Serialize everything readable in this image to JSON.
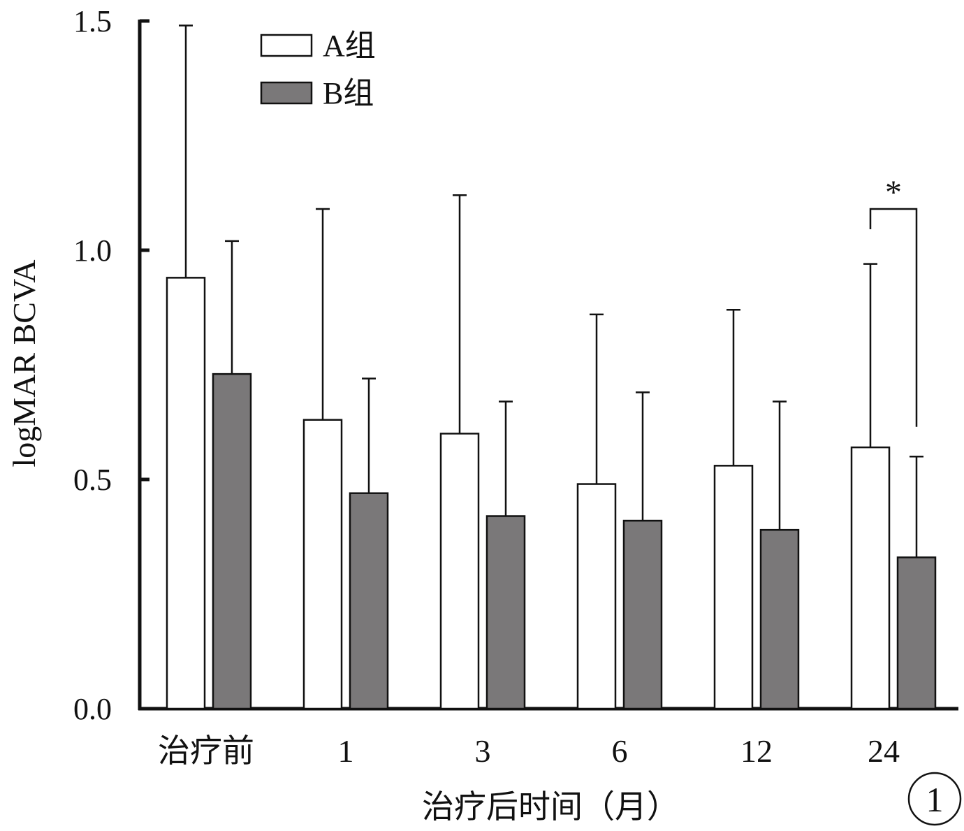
{
  "chart_data": {
    "type": "bar",
    "title": "",
    "xlabel": "治疗后时间（月）",
    "ylabel": "logMAR BCVA",
    "categories": [
      "治疗前",
      "1",
      "3",
      "6",
      "12",
      "24"
    ],
    "ylim": [
      0,
      1.5
    ],
    "yticks": [
      "0.0",
      "0.5",
      "1.0",
      "1.5"
    ],
    "series": [
      {
        "name": "A组",
        "values": [
          0.94,
          0.63,
          0.6,
          0.49,
          0.53,
          0.57
        ],
        "error_upper": [
          1.49,
          1.09,
          1.12,
          0.86,
          0.87,
          0.97
        ],
        "fill": "#ffffff"
      },
      {
        "name": "B组",
        "values": [
          0.73,
          0.47,
          0.42,
          0.41,
          0.39,
          0.33
        ],
        "error_upper": [
          1.02,
          0.72,
          0.67,
          0.69,
          0.67,
          0.55
        ],
        "fill": "#7a7879"
      }
    ],
    "annotations": [
      {
        "type": "significance",
        "category": "24",
        "text": "*",
        "bracket_top": 1.09
      }
    ],
    "legend": "top-left",
    "grid": false,
    "panel_label": "1"
  }
}
